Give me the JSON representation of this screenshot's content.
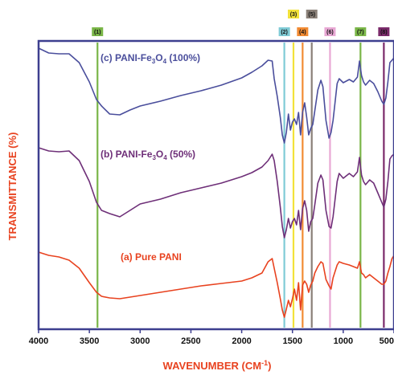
{
  "chart_data": {
    "type": "line",
    "xlabel": "WAVENUMBER (CM",
    "xlabel_sup": "-1",
    "xlabel_close": ")",
    "ylabel": "TRANSMITTANCE (%)",
    "xlim": [
      4000,
      500
    ],
    "x_ticks": [
      4000,
      3500,
      3000,
      2500,
      2000,
      1500,
      1000,
      500
    ],
    "x_tick_labels": [
      "4000",
      "3500",
      "3000",
      "2500",
      "2000",
      "1500",
      "1000",
      "500"
    ],
    "grid": false,
    "series": [
      {
        "label_main": "(c) PANI-Fe",
        "label_sub": "3",
        "label_mid": "O",
        "label_sub2": "4",
        "label_end": " (100%)",
        "color": "#4a4e9c",
        "points": [
          [
            4000,
            60
          ],
          [
            3900,
            66
          ],
          [
            3800,
            67
          ],
          [
            3700,
            67
          ],
          [
            3600,
            78
          ],
          [
            3500,
            102
          ],
          [
            3430,
            124
          ],
          [
            3380,
            132
          ],
          [
            3300,
            142
          ],
          [
            3200,
            143
          ],
          [
            3100,
            137
          ],
          [
            3000,
            132
          ],
          [
            2800,
            126
          ],
          [
            2600,
            119
          ],
          [
            2400,
            113
          ],
          [
            2200,
            106
          ],
          [
            2000,
            97
          ],
          [
            1900,
            90
          ],
          [
            1800,
            82
          ],
          [
            1740,
            75
          ],
          [
            1700,
            76
          ],
          [
            1680,
            98
          ],
          [
            1650,
            120
          ],
          [
            1620,
            146
          ],
          [
            1600,
            168
          ],
          [
            1580,
            178
          ],
          [
            1560,
            165
          ],
          [
            1540,
            142
          ],
          [
            1520,
            162
          ],
          [
            1500,
            152
          ],
          [
            1480,
            148
          ],
          [
            1460,
            155
          ],
          [
            1440,
            140
          ],
          [
            1420,
            168
          ],
          [
            1400,
            140
          ],
          [
            1380,
            128
          ],
          [
            1360,
            146
          ],
          [
            1340,
            168
          ],
          [
            1320,
            160
          ],
          [
            1300,
            155
          ],
          [
            1280,
            138
          ],
          [
            1250,
            112
          ],
          [
            1220,
            100
          ],
          [
            1200,
            108
          ],
          [
            1170,
            150
          ],
          [
            1140,
            172
          ],
          [
            1120,
            165
          ],
          [
            1100,
            150
          ],
          [
            1060,
            104
          ],
          [
            1040,
            98
          ],
          [
            1000,
            103
          ],
          [
            940,
            99
          ],
          [
            900,
            102
          ],
          [
            860,
            96
          ],
          [
            840,
            76
          ],
          [
            820,
            94
          ],
          [
            800,
            102
          ],
          [
            780,
            106
          ],
          [
            740,
            100
          ],
          [
            700,
            104
          ],
          [
            660,
            114
          ],
          [
            620,
            126
          ],
          [
            600,
            130
          ],
          [
            580,
            122
          ],
          [
            560,
            102
          ],
          [
            540,
            78
          ],
          [
            520,
            75
          ],
          [
            500,
            72
          ]
        ]
      },
      {
        "label_main": "(b) PANI-Fe",
        "label_sub": "3",
        "label_mid": "O",
        "label_sub2": "4",
        "label_end": " (50%)",
        "color": "#6e2f78",
        "points": [
          [
            4000,
            184
          ],
          [
            3900,
            188
          ],
          [
            3800,
            189
          ],
          [
            3700,
            188
          ],
          [
            3600,
            200
          ],
          [
            3500,
            226
          ],
          [
            3430,
            252
          ],
          [
            3380,
            262
          ],
          [
            3300,
            266
          ],
          [
            3200,
            270
          ],
          [
            3100,
            262
          ],
          [
            3000,
            254
          ],
          [
            2800,
            248
          ],
          [
            2600,
            240
          ],
          [
            2400,
            234
          ],
          [
            2200,
            228
          ],
          [
            2000,
            220
          ],
          [
            1900,
            215
          ],
          [
            1800,
            208
          ],
          [
            1740,
            200
          ],
          [
            1700,
            192
          ],
          [
            1680,
            200
          ],
          [
            1650,
            226
          ],
          [
            1620,
            258
          ],
          [
            1600,
            282
          ],
          [
            1580,
            296
          ],
          [
            1560,
            286
          ],
          [
            1540,
            272
          ],
          [
            1520,
            284
          ],
          [
            1500,
            276
          ],
          [
            1480,
            272
          ],
          [
            1460,
            280
          ],
          [
            1440,
            262
          ],
          [
            1420,
            286
          ],
          [
            1400,
            260
          ],
          [
            1380,
            250
          ],
          [
            1360,
            262
          ],
          [
            1340,
            288
          ],
          [
            1320,
            276
          ],
          [
            1300,
            272
          ],
          [
            1280,
            255
          ],
          [
            1250,
            228
          ],
          [
            1220,
            218
          ],
          [
            1200,
            224
          ],
          [
            1170,
            262
          ],
          [
            1140,
            282
          ],
          [
            1120,
            284
          ],
          [
            1100,
            270
          ],
          [
            1060,
            226
          ],
          [
            1040,
            216
          ],
          [
            1000,
            222
          ],
          [
            940,
            216
          ],
          [
            900,
            220
          ],
          [
            860,
            214
          ],
          [
            840,
            196
          ],
          [
            820,
            218
          ],
          [
            800,
            226
          ],
          [
            780,
            230
          ],
          [
            740,
            224
          ],
          [
            700,
            228
          ],
          [
            660,
            240
          ],
          [
            620,
            252
          ],
          [
            600,
            258
          ],
          [
            580,
            248
          ],
          [
            560,
            226
          ],
          [
            540,
            198
          ],
          [
            520,
            194
          ],
          [
            500,
            192
          ]
        ]
      },
      {
        "label_main": "(a) Pure PANI",
        "label_sub": "",
        "label_mid": "",
        "label_sub2": "",
        "label_end": "",
        "color": "#e8421f",
        "points": [
          [
            4000,
            314
          ],
          [
            3900,
            318
          ],
          [
            3800,
            320
          ],
          [
            3700,
            324
          ],
          [
            3600,
            334
          ],
          [
            3500,
            352
          ],
          [
            3430,
            364
          ],
          [
            3380,
            369
          ],
          [
            3300,
            371
          ],
          [
            3200,
            372
          ],
          [
            3100,
            370
          ],
          [
            3000,
            368
          ],
          [
            2800,
            364
          ],
          [
            2600,
            360
          ],
          [
            2400,
            356
          ],
          [
            2200,
            353
          ],
          [
            2000,
            350
          ],
          [
            1900,
            346
          ],
          [
            1800,
            340
          ],
          [
            1740,
            326
          ],
          [
            1700,
            322
          ],
          [
            1680,
            334
          ],
          [
            1650,
            352
          ],
          [
            1620,
            372
          ],
          [
            1600,
            386
          ],
          [
            1580,
            395
          ],
          [
            1560,
            385
          ],
          [
            1540,
            374
          ],
          [
            1520,
            382
          ],
          [
            1500,
            372
          ],
          [
            1480,
            360
          ],
          [
            1460,
            374
          ],
          [
            1440,
            352
          ],
          [
            1420,
            386
          ],
          [
            1400,
            355
          ],
          [
            1380,
            350
          ],
          [
            1360,
            354
          ],
          [
            1340,
            364
          ],
          [
            1320,
            355
          ],
          [
            1300,
            350
          ],
          [
            1280,
            340
          ],
          [
            1250,
            332
          ],
          [
            1220,
            326
          ],
          [
            1200,
            328
          ],
          [
            1170,
            348
          ],
          [
            1140,
            356
          ],
          [
            1120,
            360
          ],
          [
            1100,
            346
          ],
          [
            1060,
            330
          ],
          [
            1040,
            326
          ],
          [
            1000,
            328
          ],
          [
            940,
            330
          ],
          [
            900,
            332
          ],
          [
            860,
            334
          ],
          [
            840,
            326
          ],
          [
            820,
            340
          ],
          [
            800,
            342
          ],
          [
            780,
            346
          ],
          [
            740,
            342
          ],
          [
            700,
            346
          ],
          [
            660,
            350
          ],
          [
            620,
            354
          ],
          [
            600,
            354
          ],
          [
            580,
            350
          ],
          [
            560,
            340
          ],
          [
            540,
            332
          ],
          [
            520,
            322
          ],
          [
            500,
            318
          ]
        ]
      }
    ],
    "bands": [
      {
        "tag": "(1)",
        "x": 3420,
        "color": "#7ab648",
        "tag_color": "#7ab648",
        "row": 1
      },
      {
        "tag": "(2)",
        "x": 1580,
        "color": "#7fcbd6",
        "tag_color": "#7fcbd6",
        "row": 1
      },
      {
        "tag": "(3)",
        "x": 1490,
        "color": "#f2e23a",
        "tag_color": "#f2e23a",
        "row": 0
      },
      {
        "tag": "(4)",
        "x": 1400,
        "color": "#f28b33",
        "tag_color": "#f28b33",
        "row": 1
      },
      {
        "tag": "(5)",
        "x": 1310,
        "color": "#8a8078",
        "tag_color": "#8a8078",
        "row": 0
      },
      {
        "tag": "(6)",
        "x": 1130,
        "color": "#e8a8d4",
        "tag_color": "#e8a8d4",
        "row": 1
      },
      {
        "tag": "(7)",
        "x": 830,
        "color": "#7ab648",
        "tag_color": "#7ab648",
        "row": 1
      },
      {
        "tag": "(8)",
        "x": 600,
        "color": "#7a2a6a",
        "tag_color": "#7a2a6a",
        "row": 1
      }
    ]
  }
}
